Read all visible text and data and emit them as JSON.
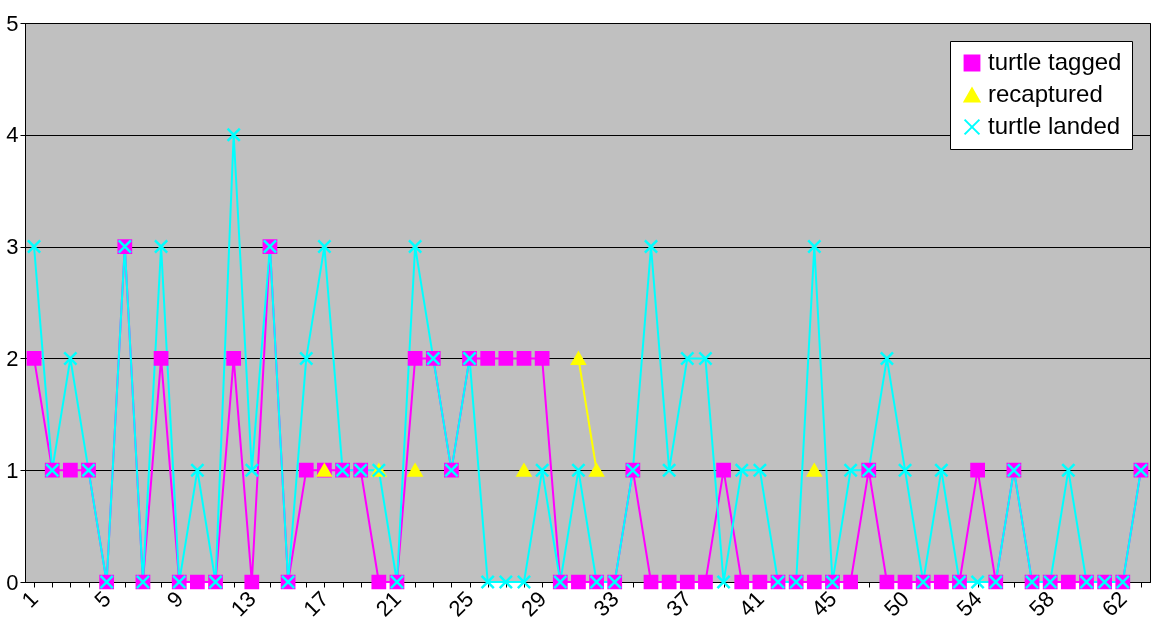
{
  "chart_data": {
    "type": "line",
    "categories": [
      "1",
      null,
      null,
      null,
      "5",
      null,
      null,
      null,
      "9",
      null,
      null,
      null,
      "13",
      null,
      null,
      null,
      "17",
      null,
      null,
      null,
      "21",
      null,
      null,
      null,
      "25",
      null,
      null,
      null,
      "29",
      null,
      null,
      null,
      "33",
      null,
      null,
      null,
      "37",
      null,
      null,
      null,
      "41",
      null,
      null,
      null,
      "45",
      null,
      null,
      null,
      "50",
      null,
      null,
      null,
      "54",
      null,
      null,
      null,
      "58",
      null,
      null,
      null,
      "62",
      null
    ],
    "series": [
      {
        "name": "turtle tagged",
        "color": "#ff00ff",
        "marker": "square",
        "values": [
          2,
          1,
          1,
          1,
          0,
          3,
          0,
          2,
          0,
          0,
          0,
          2,
          0,
          3,
          0,
          1,
          1,
          1,
          1,
          0,
          0,
          2,
          2,
          1,
          2,
          2,
          2,
          2,
          2,
          0,
          0,
          0,
          0,
          1,
          0,
          0,
          0,
          0,
          1,
          0,
          0,
          0,
          0,
          0,
          0,
          0,
          1,
          0,
          0,
          0,
          0,
          0,
          1,
          0,
          1,
          0,
          0,
          0,
          0,
          0,
          0,
          1
        ]
      },
      {
        "name": "recaptured",
        "color": "#ffff00",
        "marker": "triangle",
        "values": [
          null,
          null,
          null,
          null,
          null,
          null,
          null,
          null,
          null,
          null,
          null,
          null,
          null,
          null,
          null,
          null,
          1,
          null,
          null,
          1,
          null,
          1,
          null,
          null,
          null,
          null,
          null,
          1,
          null,
          null,
          2,
          1,
          null,
          null,
          null,
          null,
          null,
          null,
          null,
          null,
          null,
          null,
          null,
          1,
          null,
          null,
          null,
          null,
          null,
          null,
          null,
          null,
          null,
          null,
          null,
          null,
          null,
          null,
          null,
          null,
          null,
          null
        ]
      },
      {
        "name": "turtle landed",
        "color": "#00ffff",
        "marker": "cross",
        "values": [
          3,
          1,
          2,
          1,
          0,
          3,
          0,
          3,
          0,
          1,
          0,
          4,
          1,
          3,
          0,
          2,
          3,
          1,
          1,
          1,
          0,
          3,
          2,
          1,
          2,
          0,
          0,
          0,
          1,
          0,
          1,
          0,
          0,
          1,
          3,
          1,
          2,
          2,
          0,
          1,
          1,
          0,
          0,
          3,
          0,
          1,
          1,
          2,
          1,
          0,
          1,
          0,
          0,
          0,
          1,
          0,
          0,
          1,
          0,
          0,
          0,
          1
        ]
      }
    ],
    "ylim": [
      0,
      5
    ],
    "yticks": [
      0,
      1,
      2,
      3,
      4,
      5
    ],
    "grid": "y",
    "legend": "top right",
    "line_style": "solid"
  }
}
